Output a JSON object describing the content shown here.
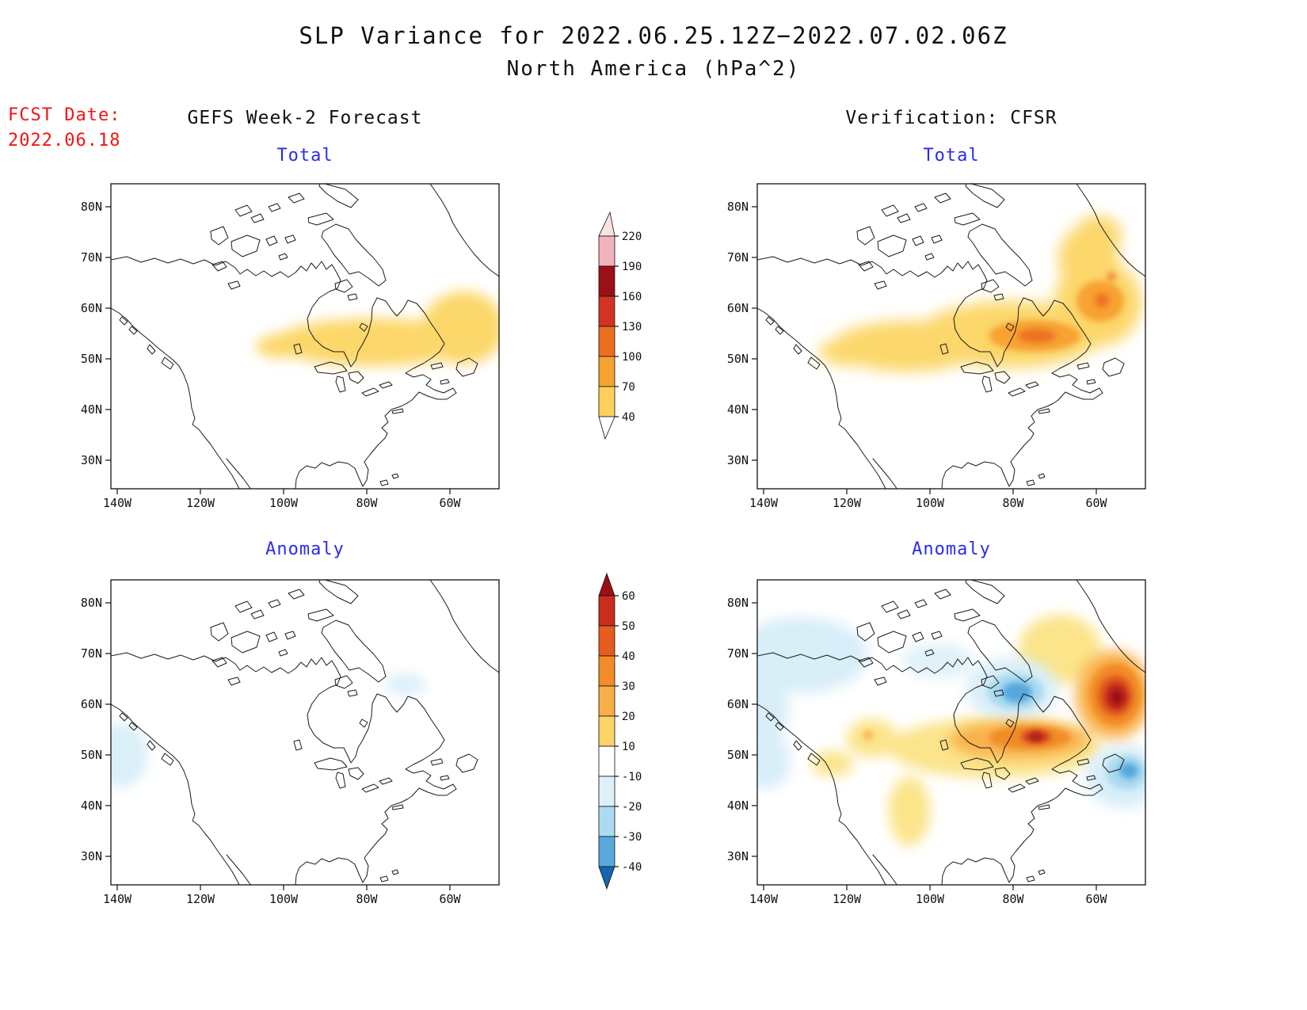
{
  "title": {
    "line1": "SLP Variance for 2022.06.25.12Z−2022.07.02.06Z",
    "line2": "North America (hPa^2)"
  },
  "fcst_date": {
    "label": "FCST Date:",
    "value": "2022.06.18"
  },
  "columns": [
    {
      "header": "GEFS Week-2 Forecast"
    },
    {
      "header": "Verification: CFSR"
    }
  ],
  "panels": [
    {
      "title": "Total"
    },
    {
      "title": "Total"
    },
    {
      "title": "Anomaly"
    },
    {
      "title": "Anomaly"
    }
  ],
  "axes": {
    "lat_ticks": [
      "80N",
      "70N",
      "60N",
      "50N",
      "40N",
      "30N"
    ],
    "lon_ticks": [
      "140W",
      "120W",
      "100W",
      "80W",
      "60W"
    ]
  },
  "colorbars": {
    "total": {
      "ticks": [
        "220",
        "190",
        "160",
        "130",
        "100",
        "70",
        "40"
      ],
      "segment_colors": [
        "#f2b2ba",
        "#9b1014",
        "#d23322",
        "#ec6f1f",
        "#f6a331",
        "#fcd05a"
      ],
      "top": "taper",
      "top_color": "#f9e2e6",
      "bottom": "taper",
      "bottom_color": "#ffffff"
    },
    "anomaly": {
      "ticks": [
        "60",
        "50",
        "40",
        "30",
        "20",
        "10",
        "-10",
        "-20",
        "-30",
        "-40"
      ],
      "segment_colors": [
        "#c92d1c",
        "#e55c1e",
        "#f28b28",
        "#f8ae49",
        "#fcd468",
        "#ffffff",
        "#def1f9",
        "#abdbf0",
        "#58a9dc"
      ],
      "top": "arrow",
      "top_color": "#9e0f13",
      "bottom": "arrow",
      "bottom_color": "#1566b0"
    }
  },
  "chart_data": [
    {
      "type": "heatmap",
      "title": "GEFS Week-2 Forecast — Total SLP Variance",
      "units": "hPa^2",
      "x_ticks": [
        "140W",
        "120W",
        "100W",
        "80W",
        "60W"
      ],
      "y_ticks": [
        "80N",
        "70N",
        "60N",
        "50N",
        "40N",
        "30N"
      ],
      "contour_levels": [
        40,
        70,
        100,
        130,
        160,
        190,
        220
      ],
      "shaded_regions": [
        {
          "range_hpa2": [
            40,
            70
          ],
          "location": "zonal band across central Canada and Quebec, ~48-58N from ~105W to ~52W, widening toward the Labrador Sea"
        }
      ],
      "approx_max": 70
    },
    {
      "type": "heatmap",
      "title": "Verification: CFSR — Total SLP Variance",
      "units": "hPa^2",
      "x_ticks": [
        "140W",
        "120W",
        "100W",
        "80W",
        "60W"
      ],
      "y_ticks": [
        "80N",
        "70N",
        "60N",
        "50N",
        "40N",
        "30N"
      ],
      "contour_levels": [
        40,
        70,
        100,
        130,
        160,
        190,
        220
      ],
      "shaded_regions": [
        {
          "range_hpa2": [
            40,
            70
          ],
          "location": "broad region ~45-67N from ~125W to ~50W with an arm extending north along ~60-65W to ~77N"
        },
        {
          "range_hpa2": [
            70,
            100
          ],
          "location": "cores over central Quebec (~54N, 75W) and the Labrador Sea (~61N, 58W)"
        },
        {
          "range_hpa2": [
            100,
            130
          ],
          "location": "small maxima near 54N 73W and 62N 57W, tiny spot near 67N 57W"
        }
      ],
      "approx_max": 110
    },
    {
      "type": "heatmap",
      "title": "GEFS Week-2 Forecast — SLP Variance Anomaly",
      "units": "hPa^2",
      "x_ticks": [
        "140W",
        "120W",
        "100W",
        "80W",
        "60W"
      ],
      "y_ticks": [
        "80N",
        "70N",
        "60N",
        "50N",
        "40N",
        "30N"
      ],
      "contour_levels": [
        -40,
        -30,
        -20,
        -10,
        10,
        20,
        30,
        40,
        50,
        60
      ],
      "shaded_regions": [
        {
          "range_hpa2": [
            -20,
            -10
          ],
          "location": "weak negative patch at left edge off the Pacific Northwest (~50N, 140W)"
        },
        {
          "range_hpa2": [
            -20,
            -10
          ],
          "location": "faint negative patch near Foxe Basin (~63N, 71W)"
        }
      ],
      "approx_min": -15,
      "approx_max": 5
    },
    {
      "type": "heatmap",
      "title": "Verification: CFSR — SLP Variance Anomaly",
      "units": "hPa^2",
      "x_ticks": [
        "140W",
        "120W",
        "100W",
        "80W",
        "60W"
      ],
      "y_ticks": [
        "80N",
        "70N",
        "60N",
        "50N",
        "40N",
        "30N"
      ],
      "contour_levels": [
        -40,
        -30,
        -20,
        -10,
        10,
        20,
        30,
        40,
        50,
        60
      ],
      "shaded_regions": [
        {
          "range_hpa2": [
            50,
            65
          ],
          "location": "intense positive core over the Labrador Sea (~62N, 56W)"
        },
        {
          "range_hpa2": [
            30,
            50
          ],
          "location": "positive band ~50-56N from ~85W to ~60W with core near 54N 73W"
        },
        {
          "range_hpa2": [
            10,
            30
          ],
          "location": "positive areas over Baffin Island (~65-75N, 65W), scattered central/western Canada (~54N 113W) and ~100W 40-48N"
        },
        {
          "range_hpa2": [
            -30,
            -10
          ],
          "location": "negative center over Foxe Basin / Hudson Strait (~64N, 78W)"
        },
        {
          "range_hpa2": [
            -20,
            -10
          ],
          "location": "negatives over NW Canada/Alaska, left edge ~50N 140W, and south of Newfoundland (~47N, 53W)"
        }
      ],
      "approx_min": -30,
      "approx_max": 65
    }
  ]
}
